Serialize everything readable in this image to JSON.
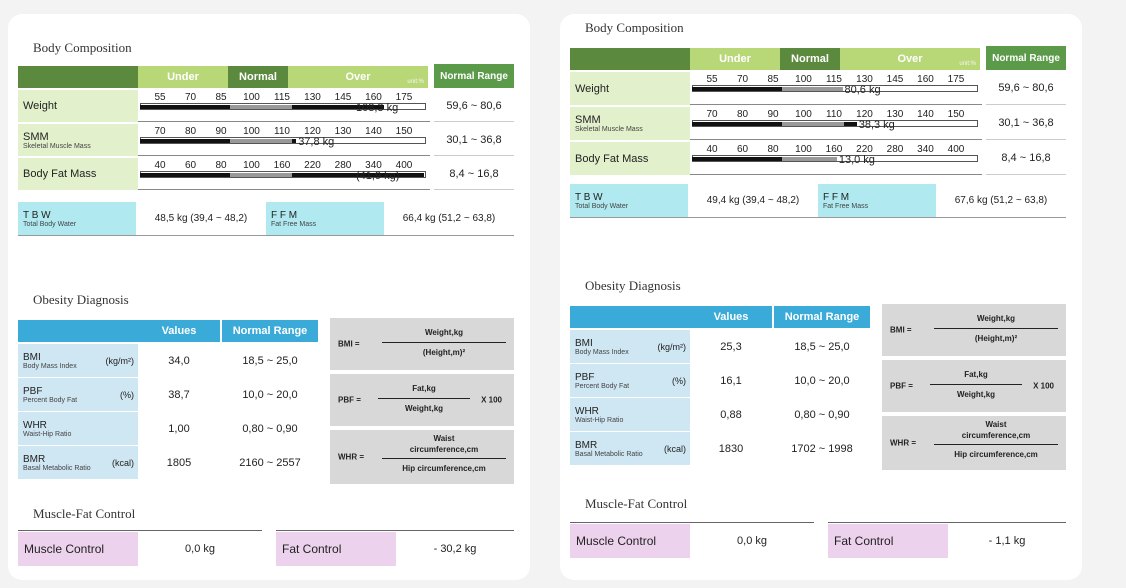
{
  "reports": [
    {
      "body_composition": {
        "title": "Body Composition",
        "headers": {
          "under": "Under",
          "normal": "Normal",
          "over": "Over",
          "unit": "unit:%",
          "normal_range": "Normal Range"
        },
        "rows": [
          {
            "label": "Weight",
            "sub": "",
            "scale": [
              "55",
              "70",
              "85",
              "100",
              "115",
              "130",
              "145",
              "160",
              "175"
            ],
            "value": "108,3 kg",
            "range": "59,6 ~ 80,6",
            "bar_fraction": 0.86
          },
          {
            "label": "SMM",
            "sub": "Skeletal Muscle Mass",
            "scale": [
              "70",
              "80",
              "90",
              "100",
              "110",
              "120",
              "130",
              "140",
              "150"
            ],
            "value": "37,8 kg",
            "range": "30,1 ~ 36,8",
            "bar_fraction": 0.55
          },
          {
            "label": "Body Fat Mass",
            "sub": "",
            "scale": [
              "40",
              "60",
              "80",
              "100",
              "160",
              "220",
              "280",
              "340",
              "400"
            ],
            "value": "(41,9 kg)",
            "range": "8,4 ~ 16,8",
            "bar_fraction": 1.0
          }
        ],
        "tbw": {
          "label": "T B W",
          "sub": "Total Body Water",
          "value": "48,5 kg (39,4 ~ 48,2)"
        },
        "ffm": {
          "label": "F F M",
          "sub": "Fat Free Mass",
          "value": "66,4 kg (51,2 ~ 63,8)"
        }
      },
      "obesity": {
        "title": "Obesity Diagnosis",
        "headers": {
          "values": "Values",
          "normal_range": "Normal Range"
        },
        "rows": [
          {
            "label": "BMI",
            "sub": "Body Mass Index",
            "unit": "(kg/m²)",
            "value": "34,0",
            "range": "18,5 ~ 25,0"
          },
          {
            "label": "PBF",
            "sub": "Percent Body Fat",
            "unit": "(%)",
            "value": "38,7",
            "range": "10,0 ~ 20,0"
          },
          {
            "label": "WHR",
            "sub": "Waist-Hip Ratio",
            "unit": "",
            "value": "1,00",
            "range": "0,80 ~ 0,90"
          },
          {
            "label": "BMR",
            "sub": "Basal Metabolic Ratio",
            "unit": "(kcal)",
            "value": "1805",
            "range": "2160 ~ 2557"
          }
        ]
      },
      "muscle_fat": {
        "title": "Muscle-Fat Control",
        "muscle_label": "Muscle Control",
        "muscle_value": "0,0 kg",
        "fat_label": "Fat Control",
        "fat_value": "- 30,2 kg"
      }
    },
    {
      "body_composition": {
        "title": "Body Composition",
        "headers": {
          "under": "Under",
          "normal": "Normal",
          "over": "Over",
          "unit": "unit:%",
          "normal_range": "Normal Range"
        },
        "rows": [
          {
            "label": "Weight",
            "sub": "",
            "scale": [
              "55",
              "70",
              "85",
              "100",
              "115",
              "130",
              "145",
              "160",
              "175"
            ],
            "value": "80,6 kg",
            "range": "59,6 ~ 80,6",
            "bar_fraction": 0.53
          },
          {
            "label": "SMM",
            "sub": "Skeletal Muscle Mass",
            "scale": [
              "70",
              "80",
              "90",
              "100",
              "110",
              "120",
              "130",
              "140",
              "150"
            ],
            "value": "38,3 kg",
            "range": "30,1 ~ 36,8",
            "bar_fraction": 0.58
          },
          {
            "label": "Body Fat Mass",
            "sub": "",
            "scale": [
              "40",
              "60",
              "80",
              "100",
              "160",
              "220",
              "280",
              "340",
              "400"
            ],
            "value": "13,0 kg",
            "range": "8,4 ~ 16,8",
            "bar_fraction": 0.51
          }
        ],
        "tbw": {
          "label": "T B W",
          "sub": "Total Body Water",
          "value": "49,4 kg (39,4 ~ 48,2)"
        },
        "ffm": {
          "label": "F F M",
          "sub": "Fat Free Mass",
          "value": "67,6 kg (51,2 ~ 63,8)"
        }
      },
      "obesity": {
        "title": "Obesity Diagnosis",
        "headers": {
          "values": "Values",
          "normal_range": "Normal Range"
        },
        "rows": [
          {
            "label": "BMI",
            "sub": "Body Mass Index",
            "unit": "(kg/m²)",
            "value": "25,3",
            "range": "18,5 ~ 25,0"
          },
          {
            "label": "PBF",
            "sub": "Percent Body Fat",
            "unit": "(%)",
            "value": "16,1",
            "range": "10,0 ~ 20,0"
          },
          {
            "label": "WHR",
            "sub": "Waist-Hip Ratio",
            "unit": "",
            "value": "0,88",
            "range": "0,80 ~ 0,90"
          },
          {
            "label": "BMR",
            "sub": "Basal Metabolic Ratio",
            "unit": "(kcal)",
            "value": "1830",
            "range": "1702 ~ 1998"
          }
        ]
      },
      "muscle_fat": {
        "title": "Muscle-Fat Control",
        "muscle_label": "Muscle Control",
        "muscle_value": "0,0 kg",
        "fat_label": "Fat Control",
        "fat_value": "- 1,1 kg"
      }
    }
  ],
  "formulas": {
    "bmi": {
      "lhs": "BMI =",
      "num": "Weight,kg",
      "den": "(Height,m)²"
    },
    "pbf": {
      "lhs": "PBF =",
      "num": "Fat,kg",
      "den": "Weight,kg",
      "mult": "X 100"
    },
    "whr": {
      "lhs": "WHR =",
      "num1": "Waist",
      "num2": "circumference,cm",
      "den": "Hip circumference,cm"
    }
  }
}
